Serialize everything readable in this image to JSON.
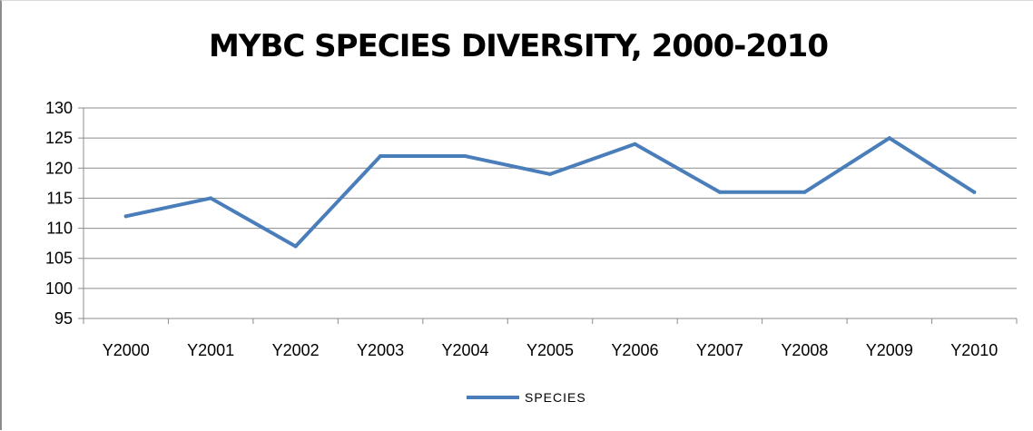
{
  "chart_data": {
    "type": "line",
    "title": "MYBC SPECIES DIVERSITY, 2000-2010",
    "categories": [
      "Y2000",
      "Y2001",
      "Y2002",
      "Y2003",
      "Y2004",
      "Y2005",
      "Y2006",
      "Y2007",
      "Y2008",
      "Y2009",
      "Y2010"
    ],
    "series": [
      {
        "name": "SPECIES",
        "values": [
          112,
          115,
          107,
          122,
          122,
          119,
          124,
          116,
          116,
          125,
          116
        ],
        "color": "#4a7ebb"
      }
    ],
    "ylim": [
      95,
      130
    ],
    "yticks": [
      "95",
      "100",
      "105",
      "110",
      "115",
      "120",
      "125",
      "130"
    ],
    "grid": true,
    "legend": "bottom"
  }
}
